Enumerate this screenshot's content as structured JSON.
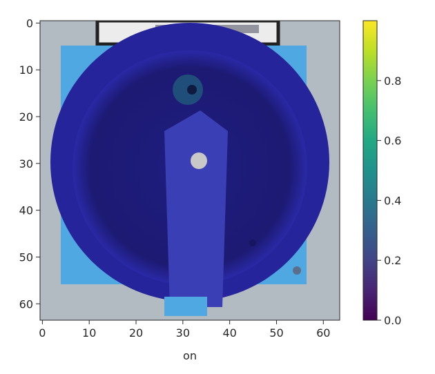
{
  "chart_data": {
    "type": "heatmap",
    "title": "",
    "xlabel": "on",
    "ylabel": "",
    "x_range": [
      -0.5,
      63.5
    ],
    "y_range": [
      -0.5,
      63.5
    ],
    "y_inverted": true,
    "x_ticks": [
      0,
      10,
      20,
      30,
      40,
      50,
      60
    ],
    "y_ticks": [
      0,
      10,
      20,
      30,
      40,
      50,
      60
    ],
    "grid": false,
    "colormap": "viridis",
    "colorbar": {
      "range": [
        0.0,
        1.0
      ],
      "ticks": [
        0.0,
        0.2,
        0.4,
        0.6,
        0.8
      ],
      "tick_labels": [
        "0.0",
        "0.2",
        "0.4",
        "0.6",
        "0.8"
      ],
      "placement": "right"
    },
    "image": {
      "subject": "Top view of a blue rotary disconnect switch handle: a dark-blue circular dial with a vertical lever, mounted on a light-blue square plate over a grey background, with a white label plate at the top.",
      "colors": {
        "background": "#b9c0c6",
        "plate": "#4fa8e2",
        "dial_outer": "#26249a",
        "dial_inner": "#1d1b78",
        "lever": "#3b3fb6",
        "label": "#ececec",
        "label_border": "#222222",
        "screw": "#c8c8c8"
      }
    }
  }
}
